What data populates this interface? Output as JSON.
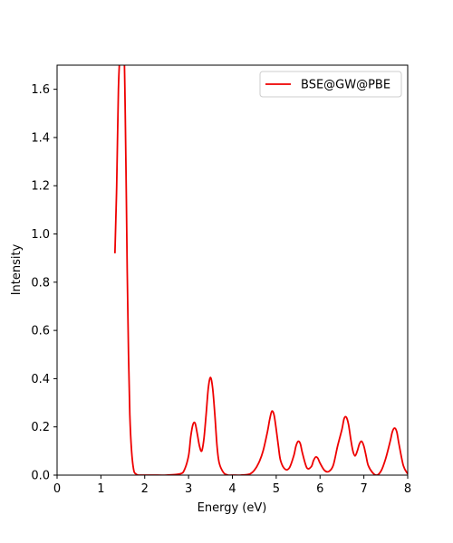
{
  "chart_data": {
    "type": "line",
    "title": "",
    "xlabel": "Energy (eV)",
    "ylabel": "Intensity",
    "xlim": [
      0,
      8
    ],
    "ylim": [
      0,
      1.7
    ],
    "xticks": [
      0,
      1,
      2,
      3,
      4,
      5,
      6,
      7,
      8
    ],
    "yticks": [
      0.0,
      0.2,
      0.4,
      0.6,
      0.8,
      1.0,
      1.2,
      1.4,
      1.6
    ],
    "grid": false,
    "legend": {
      "position": "top-right"
    },
    "series": [
      {
        "name": "BSE@GW@PBE",
        "color": "#ee0000",
        "x": [
          1.32,
          1.36,
          1.4,
          1.44,
          1.48,
          1.53,
          1.57,
          1.6,
          1.63,
          1.66,
          1.7,
          1.75,
          1.8,
          1.85,
          1.9,
          2.0,
          2.2,
          2.5,
          2.8,
          2.9,
          3.0,
          3.05,
          3.1,
          3.15,
          3.2,
          3.25,
          3.3,
          3.35,
          3.4,
          3.45,
          3.5,
          3.55,
          3.6,
          3.65,
          3.7,
          3.8,
          3.9,
          4.0,
          4.2,
          4.4,
          4.5,
          4.6,
          4.7,
          4.8,
          4.85,
          4.9,
          4.95,
          5.0,
          5.05,
          5.1,
          5.2,
          5.3,
          5.4,
          5.45,
          5.5,
          5.55,
          5.6,
          5.7,
          5.8,
          5.85,
          5.9,
          5.95,
          6.0,
          6.1,
          6.2,
          6.3,
          6.4,
          6.5,
          6.55,
          6.6,
          6.65,
          6.7,
          6.75,
          6.8,
          6.85,
          6.9,
          6.95,
          7.0,
          7.05,
          7.1,
          7.2,
          7.3,
          7.4,
          7.5,
          7.6,
          7.65,
          7.7,
          7.75,
          7.8,
          7.9,
          8.0
        ],
        "y": [
          0.92,
          1.2,
          1.6,
          1.75,
          1.75,
          1.75,
          1.3,
          0.85,
          0.5,
          0.25,
          0.1,
          0.02,
          0.005,
          0.0,
          0.0,
          0.0,
          0.0,
          0.0,
          0.005,
          0.02,
          0.08,
          0.16,
          0.21,
          0.215,
          0.17,
          0.12,
          0.1,
          0.15,
          0.25,
          0.36,
          0.405,
          0.36,
          0.25,
          0.12,
          0.05,
          0.01,
          0.0,
          0.0,
          0.0,
          0.005,
          0.02,
          0.05,
          0.1,
          0.18,
          0.23,
          0.265,
          0.25,
          0.19,
          0.12,
          0.06,
          0.025,
          0.03,
          0.08,
          0.12,
          0.14,
          0.13,
          0.09,
          0.03,
          0.035,
          0.06,
          0.075,
          0.07,
          0.05,
          0.02,
          0.015,
          0.04,
          0.12,
          0.19,
          0.235,
          0.24,
          0.21,
          0.15,
          0.1,
          0.08,
          0.1,
          0.13,
          0.14,
          0.12,
          0.08,
          0.04,
          0.01,
          0.0,
          0.02,
          0.07,
          0.14,
          0.18,
          0.195,
          0.18,
          0.13,
          0.04,
          0.005
        ]
      }
    ]
  }
}
